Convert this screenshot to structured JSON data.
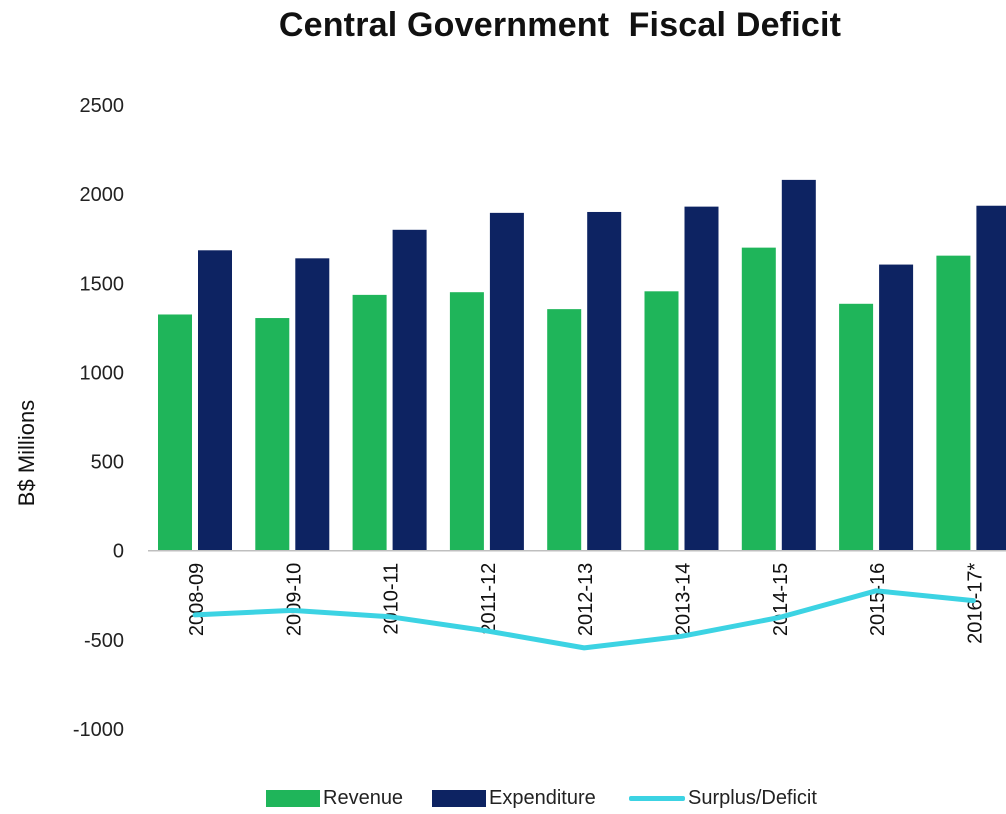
{
  "chart_data": {
    "type": "bar",
    "title": "Central Government  Fiscal Deficit",
    "xlabel": "",
    "ylabel": "B$ Millions",
    "categories": [
      "2008-09",
      "2009-10",
      "2010-11",
      "2011-12",
      "2012-13",
      "2013-14",
      "2014-15",
      "2015-16",
      "2016-17*"
    ],
    "series": [
      {
        "name": "Revenue",
        "type": "bar",
        "color": "#1fb55a",
        "values": [
          1325,
          1305,
          1435,
          1450,
          1355,
          1455,
          1700,
          1385,
          1655
        ]
      },
      {
        "name": "Expenditure",
        "type": "bar",
        "color": "#0d2362",
        "values": [
          1685,
          1640,
          1800,
          1895,
          1900,
          1930,
          2080,
          1605,
          1935
        ]
      },
      {
        "name": "Surplus/Deficit",
        "type": "line",
        "color": "#3cd3e3",
        "values": [
          -360,
          -335,
          -370,
          -450,
          -545,
          -480,
          -375,
          -225,
          -280
        ]
      }
    ],
    "ylim": [
      -1000,
      2500
    ],
    "yticks": [
      2500,
      2000,
      1500,
      1000,
      500,
      0,
      -500,
      -1000
    ],
    "grid": false,
    "legend_position": "bottom"
  }
}
